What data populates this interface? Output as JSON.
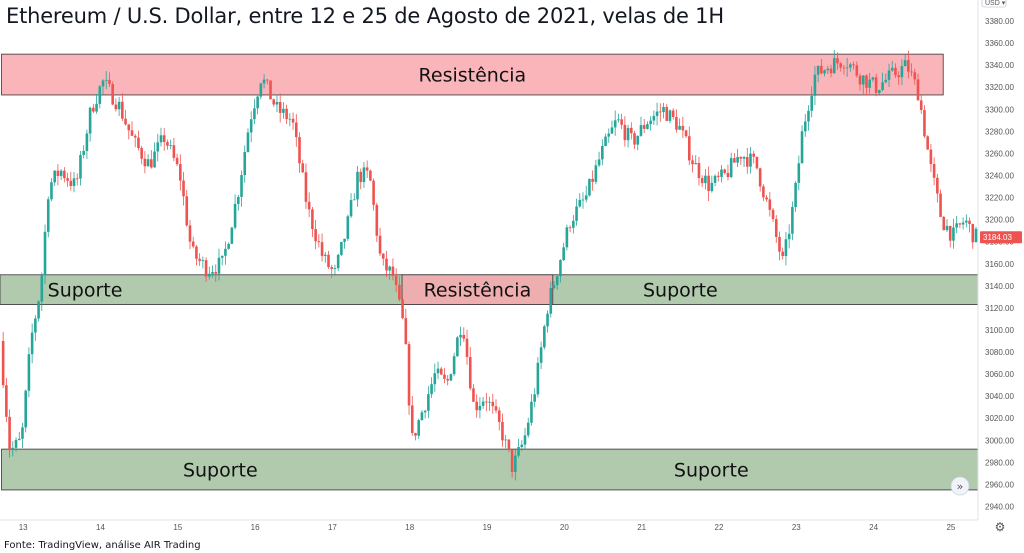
{
  "title": "Ethereum / U.S. Dollar, entre 12 e 25 de Agosto de 2021, velas de 1H",
  "source": "Fonte: TradingView, análise AIR Trading",
  "currency_badge": "USD",
  "chart_data": {
    "type": "candlestick",
    "title": "Ethereum / U.S. Dollar, entre 12 e 25 de Agosto de 2021, velas de 1H",
    "ylim": [
      2935,
      3390
    ],
    "y_ticks": [
      2940,
      2960,
      2980,
      3000,
      3020,
      3040,
      3060,
      3080,
      3100,
      3120,
      3140,
      3160,
      3180,
      3200,
      3220,
      3240,
      3260,
      3280,
      3300,
      3320,
      3340,
      3360,
      3380
    ],
    "y_tick_labels": [
      "2940.00",
      "2960.00",
      "2980.00",
      "3000.00",
      "3020.00",
      "3040.00",
      "3060.00",
      "3080.00",
      "3100.00",
      "3120.00",
      "3140.00",
      "3160.00",
      "3180.00",
      "3200.00",
      "3220.00",
      "3240.00",
      "3260.00",
      "3280.00",
      "3300.00",
      "3320.00",
      "3340.00",
      "3360.00",
      "3380.00"
    ],
    "x_ticks": [
      "13",
      "14",
      "15",
      "16",
      "17",
      "18",
      "19",
      "20",
      "21",
      "22",
      "23",
      "24",
      "25"
    ],
    "x_range_days": [
      12.7,
      25.35
    ],
    "last_price": 3184.03,
    "last_price_label": "3184.03",
    "up_color": "#26a69a",
    "down_color": "#ef5350",
    "price_path": [
      [
        12.72,
        3090
      ],
      [
        12.85,
        2990
      ],
      [
        13.0,
        3000
      ],
      [
        13.12,
        3090
      ],
      [
        13.25,
        3140
      ],
      [
        13.35,
        3230
      ],
      [
        13.5,
        3245
      ],
      [
        13.7,
        3230
      ],
      [
        13.9,
        3300
      ],
      [
        14.05,
        3325
      ],
      [
        14.25,
        3305
      ],
      [
        14.45,
        3270
      ],
      [
        14.65,
        3250
      ],
      [
        14.85,
        3275
      ],
      [
        15.05,
        3240
      ],
      [
        15.2,
        3170
      ],
      [
        15.4,
        3155
      ],
      [
        15.6,
        3160
      ],
      [
        15.8,
        3225
      ],
      [
        15.95,
        3290
      ],
      [
        16.1,
        3330
      ],
      [
        16.3,
        3300
      ],
      [
        16.5,
        3290
      ],
      [
        16.7,
        3210
      ],
      [
        16.9,
        3165
      ],
      [
        17.05,
        3150
      ],
      [
        17.2,
        3190
      ],
      [
        17.35,
        3240
      ],
      [
        17.5,
        3240
      ],
      [
        17.65,
        3160
      ],
      [
        17.8,
        3150
      ],
      [
        17.95,
        3100
      ],
      [
        18.05,
        3000
      ],
      [
        18.2,
        3030
      ],
      [
        18.35,
        3060
      ],
      [
        18.5,
        3050
      ],
      [
        18.7,
        3110
      ],
      [
        18.85,
        3030
      ],
      [
        19.0,
        3040
      ],
      [
        19.2,
        3010
      ],
      [
        19.35,
        2975
      ],
      [
        19.5,
        3000
      ],
      [
        19.65,
        3050
      ],
      [
        19.8,
        3120
      ],
      [
        19.95,
        3160
      ],
      [
        20.1,
        3200
      ],
      [
        20.3,
        3220
      ],
      [
        20.5,
        3260
      ],
      [
        20.7,
        3290
      ],
      [
        20.9,
        3270
      ],
      [
        21.1,
        3290
      ],
      [
        21.3,
        3300
      ],
      [
        21.5,
        3285
      ],
      [
        21.7,
        3250
      ],
      [
        21.9,
        3230
      ],
      [
        22.1,
        3240
      ],
      [
        22.3,
        3260
      ],
      [
        22.5,
        3250
      ],
      [
        22.7,
        3200
      ],
      [
        22.85,
        3160
      ],
      [
        23.0,
        3220
      ],
      [
        23.1,
        3280
      ],
      [
        23.25,
        3330
      ],
      [
        23.45,
        3340
      ],
      [
        23.65,
        3345
      ],
      [
        23.85,
        3330
      ],
      [
        24.05,
        3320
      ],
      [
        24.25,
        3330
      ],
      [
        24.45,
        3340
      ],
      [
        24.6,
        3315
      ],
      [
        24.75,
        3250
      ],
      [
        24.9,
        3200
      ],
      [
        25.05,
        3185
      ],
      [
        25.2,
        3200
      ],
      [
        25.33,
        3184
      ]
    ],
    "zones": [
      {
        "label": "Resistência",
        "color": "#f9a8ae",
        "y_top": 3350,
        "y_bottom": 3313,
        "x_start": 12.72,
        "x_end": 24.9
      },
      {
        "label": "Suporte",
        "color": "#a3bf9f",
        "y_top": 3150,
        "y_bottom": 3123,
        "x_start": 12.7,
        "x_end": 25.35,
        "label_x": 13.8
      },
      {
        "label": "Resistência",
        "color": "#f9a8ae",
        "y_top": 3150,
        "y_bottom": 3123,
        "x_start": 17.9,
        "x_end": 19.85
      },
      {
        "label": "Suporte",
        "color": "#a3bf9f",
        "y_top": 3150,
        "y_bottom": 3123,
        "x_start": 19.85,
        "x_end": 25.35,
        "label_x": 21.5,
        "label_only": true
      },
      {
        "label": "Suporte",
        "color": "#a3bf9f",
        "y_top": 2992,
        "y_bottom": 2955,
        "x_start": 12.72,
        "x_end": 25.35,
        "label_x": 15.55
      },
      {
        "label": "Suporte",
        "color": "#a3bf9f",
        "y_top": 2992,
        "y_bottom": 2955,
        "x_start": 12.72,
        "x_end": 25.35,
        "label_x": 21.9,
        "label_only": true
      }
    ]
  }
}
